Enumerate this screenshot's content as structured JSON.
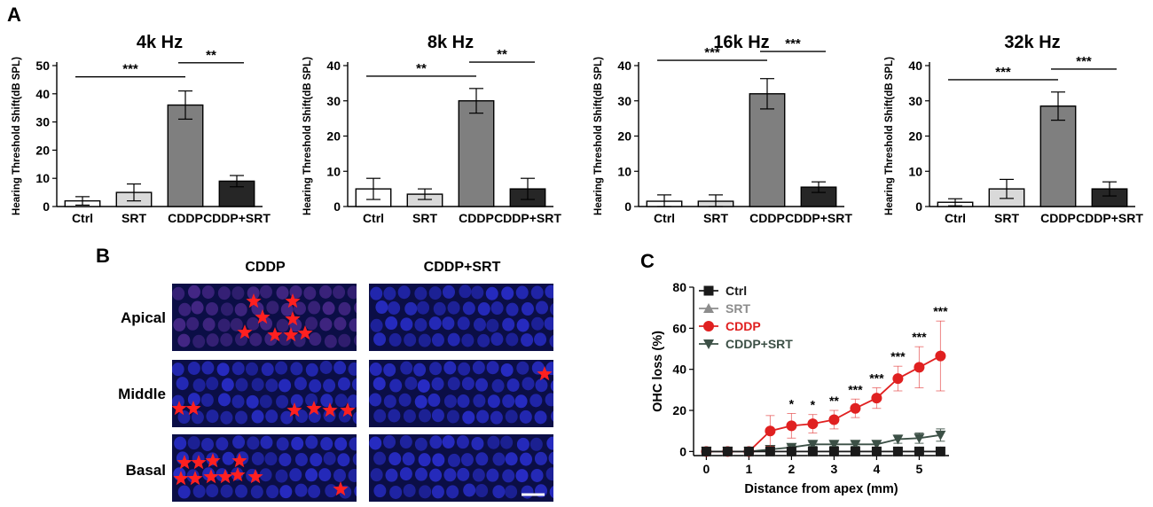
{
  "panel_labels": {
    "a": "A",
    "b": "B",
    "c": "C"
  },
  "chart_data": [
    {
      "type": "bar",
      "title": "4k Hz",
      "ylabel": "Hearing Threshold Shift(dB SPL)",
      "categories": [
        "Ctrl",
        "SRT",
        "CDDP",
        "CDDP+SRT"
      ],
      "values": [
        2,
        5,
        36,
        9
      ],
      "errors": [
        1.5,
        3,
        5,
        2
      ],
      "ylim": [
        0,
        50
      ],
      "yticks": [
        0,
        10,
        20,
        30,
        40,
        50
      ],
      "fills": [
        "#ffffff",
        "#d9d9d9",
        "#7f7f7f",
        "#262626"
      ],
      "significance": [
        {
          "from": 0,
          "to": 2,
          "label": "***",
          "y": 46
        },
        {
          "from": 2,
          "to": 3,
          "label": "**",
          "y": 51
        }
      ]
    },
    {
      "type": "bar",
      "title": "8k Hz",
      "ylabel": "Hearing Threshold Shift(dB SPL)",
      "categories": [
        "Ctrl",
        "SRT",
        "CDDP",
        "CDDP+SRT"
      ],
      "values": [
        5,
        3.5,
        30,
        5
      ],
      "errors": [
        3,
        1.5,
        3.5,
        3
      ],
      "ylim": [
        0,
        40
      ],
      "yticks": [
        0,
        10,
        20,
        30,
        40
      ],
      "fills": [
        "#ffffff",
        "#d9d9d9",
        "#7f7f7f",
        "#262626"
      ],
      "significance": [
        {
          "from": 0,
          "to": 2,
          "label": "**",
          "y": 37
        },
        {
          "from": 2,
          "to": 3,
          "label": "**",
          "y": 41
        }
      ]
    },
    {
      "type": "bar",
      "title": "16k Hz",
      "ylabel": "Hearing Threshold Shift(dB SPL)",
      "categories": [
        "Ctrl",
        "SRT",
        "CDDP",
        "CDDP+SRT"
      ],
      "values": [
        1.5,
        1.5,
        32,
        5.5
      ],
      "errors": [
        1.8,
        1.8,
        4.3,
        1.5
      ],
      "ylim": [
        0,
        40
      ],
      "yticks": [
        0,
        10,
        20,
        30,
        40
      ],
      "fills": [
        "#ffffff",
        "#d9d9d9",
        "#7f7f7f",
        "#262626"
      ],
      "significance": [
        {
          "from": 0,
          "to": 2,
          "label": "***",
          "y": 41.5
        },
        {
          "from": 2,
          "to": 3,
          "label": "***",
          "y": 44
        }
      ]
    },
    {
      "type": "bar",
      "title": "32k Hz",
      "ylabel": "Hearing Threshold Shift(dB SPL)",
      "categories": [
        "Ctrl",
        "SRT",
        "CDDP",
        "CDDP+SRT"
      ],
      "values": [
        1.2,
        5,
        28.5,
        5
      ],
      "errors": [
        1,
        2.7,
        4,
        2
      ],
      "ylim": [
        0,
        40
      ],
      "yticks": [
        0,
        10,
        20,
        30,
        40
      ],
      "fills": [
        "#ffffff",
        "#d9d9d9",
        "#7f7f7f",
        "#262626"
      ],
      "significance": [
        {
          "from": 0,
          "to": 2,
          "label": "***",
          "y": 36
        },
        {
          "from": 2,
          "to": 3,
          "label": "***",
          "y": 39
        }
      ]
    },
    {
      "type": "line",
      "xlabel": "Distance from apex (mm)",
      "ylabel": "OHC loss (%)",
      "xlim": [
        -0.3,
        5.7
      ],
      "ylim": [
        -2,
        80
      ],
      "xticks": [
        0,
        1,
        2,
        3,
        4,
        5
      ],
      "yticks": [
        0,
        20,
        40,
        60,
        80
      ],
      "x": [
        0,
        0.5,
        1,
        1.5,
        2,
        2.5,
        3,
        3.5,
        4,
        4.5,
        5,
        5.5
      ],
      "series": [
        {
          "name": "Ctrl",
          "color": "#1a1a1a",
          "marker": "square",
          "values": [
            0,
            0,
            0,
            0,
            0,
            0,
            0,
            0,
            0,
            0,
            0,
            0
          ],
          "errors": [
            0,
            0,
            0,
            0,
            0,
            0,
            0,
            0,
            0,
            0,
            0,
            0
          ]
        },
        {
          "name": "SRT",
          "color": "#8c8c8c",
          "marker": "triangle-up",
          "values": [
            0,
            0,
            0,
            0,
            0,
            0,
            0,
            0,
            0,
            0,
            0,
            0
          ],
          "errors": [
            0,
            0,
            0,
            0,
            0,
            0,
            0,
            0,
            0,
            0,
            0,
            0
          ]
        },
        {
          "name": "CDDP",
          "color": "#e02020",
          "marker": "circle",
          "values": [
            0,
            0,
            0,
            10,
            12.5,
            13.5,
            15.5,
            21,
            26,
            35.5,
            41,
            46.5
          ],
          "errors": [
            0,
            0,
            0,
            7.5,
            6,
            4.5,
            4.5,
            4.5,
            5,
            6,
            10,
            17
          ]
        },
        {
          "name": "CDDP+SRT",
          "color": "#3c5046",
          "marker": "triangle-down",
          "values": [
            0,
            0,
            0,
            1,
            2,
            3.5,
            3.5,
            3.5,
            3.5,
            6,
            6.5,
            8
          ],
          "errors": [
            0,
            0,
            0,
            1,
            1,
            1,
            1,
            1,
            1.5,
            2,
            2.5,
            3
          ]
        }
      ],
      "significance": [
        {
          "x": 2,
          "label": "*"
        },
        {
          "x": 2.5,
          "label": "*"
        },
        {
          "x": 3,
          "label": "**"
        },
        {
          "x": 3.5,
          "label": "***"
        },
        {
          "x": 4,
          "label": "***"
        },
        {
          "x": 4.5,
          "label": "***"
        },
        {
          "x": 5,
          "label": "***"
        },
        {
          "x": 5.5,
          "label": "***"
        }
      ]
    }
  ],
  "micrographs": {
    "columns": [
      "CDDP",
      "CDDP+SRT"
    ],
    "rows": [
      "Apical",
      "Middle",
      "Basal"
    ],
    "star_color": "#ff2020",
    "cddp_star_counts": [
      8,
      7,
      12
    ],
    "cddp_srt_star_counts": [
      0,
      1,
      0
    ]
  }
}
